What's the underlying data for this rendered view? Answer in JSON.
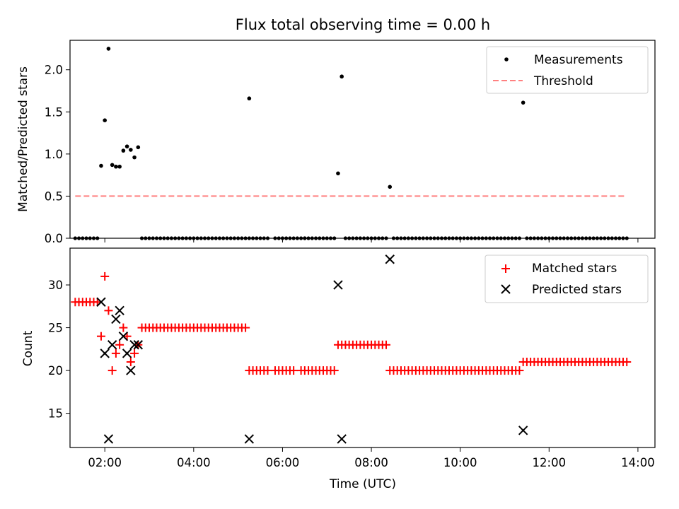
{
  "chart_data": [
    {
      "type": "scatter",
      "title": "Flux total observing time = 0.00 h",
      "ylabel": "Matched/Predicted stars",
      "xlim": [
        "01:13",
        "14:23"
      ],
      "ylim": [
        0,
        2.35
      ],
      "yticks": [
        "0.0",
        "0.5",
        "1.0",
        "1.5",
        "2.0"
      ],
      "xticks": [
        "02:00",
        "04:00",
        "06:00",
        "08:00",
        "10:00",
        "12:00",
        "14:00"
      ],
      "xtick_labels_shown": false,
      "legend": {
        "position": "top-right",
        "entries": [
          "Measurements",
          "Threshold"
        ]
      },
      "series": [
        {
          "name": "Measurements",
          "color": "#000000",
          "marker": "dot",
          "points": [
            {
              "x": "01:55",
              "y": 0.86
            },
            {
              "x": "02:00",
              "y": 1.4
            },
            {
              "x": "02:05",
              "y": 2.25
            },
            {
              "x": "02:10",
              "y": 0.87
            },
            {
              "x": "02:15",
              "y": 0.85
            },
            {
              "x": "02:20",
              "y": 0.85
            },
            {
              "x": "02:25",
              "y": 1.04
            },
            {
              "x": "02:30",
              "y": 1.09
            },
            {
              "x": "02:35",
              "y": 1.05
            },
            {
              "x": "02:40",
              "y": 0.96
            },
            {
              "x": "02:45",
              "y": 1.08
            },
            {
              "x": "05:15",
              "y": 1.66
            },
            {
              "x": "07:15",
              "y": 0.77
            },
            {
              "x": "07:20",
              "y": 1.92
            },
            {
              "x": "08:25",
              "y": 0.61
            },
            {
              "x": "11:25",
              "y": 1.61
            }
          ],
          "zero_value_runs": [
            [
              "01:20",
              "01:50"
            ],
            [
              "02:50",
              "05:10"
            ],
            [
              "05:15",
              "05:40"
            ],
            [
              "05:50",
              "06:10"
            ],
            [
              "06:15",
              "06:20"
            ],
            [
              "06:25",
              "06:30"
            ],
            [
              "06:30",
              "07:10"
            ],
            [
              "07:25",
              "08:20"
            ],
            [
              "08:30",
              "11:20"
            ],
            [
              "11:30",
              "13:45"
            ]
          ]
        },
        {
          "name": "Threshold",
          "color": "#ff8080",
          "style": "dashed",
          "x": [
            "01:20",
            "13:45"
          ],
          "y": [
            0.5,
            0.5
          ]
        }
      ]
    },
    {
      "type": "scatter",
      "title": "",
      "xlabel": "Time (UTC)",
      "ylabel": "Count",
      "xlim": [
        "01:13",
        "14:23"
      ],
      "ylim": [
        11,
        34.3
      ],
      "yticks": [
        "15",
        "20",
        "25",
        "30"
      ],
      "xticks": [
        "02:00",
        "04:00",
        "06:00",
        "08:00",
        "10:00",
        "12:00",
        "14:00"
      ],
      "legend": {
        "position": "top-right",
        "entries": [
          "Matched stars",
          "Predicted stars"
        ]
      },
      "series": [
        {
          "name": "Matched stars",
          "color": "#ff0000",
          "marker": "plus",
          "points": [
            {
              "x": "01:55",
              "y": 24
            },
            {
              "x": "02:00",
              "y": 31
            },
            {
              "x": "02:05",
              "y": 27
            },
            {
              "x": "02:10",
              "y": 20
            },
            {
              "x": "02:15",
              "y": 22
            },
            {
              "x": "02:20",
              "y": 23
            },
            {
              "x": "02:25",
              "y": 25
            },
            {
              "x": "02:30",
              "y": 24
            },
            {
              "x": "02:35",
              "y": 21
            },
            {
              "x": "02:40",
              "y": 22
            },
            {
              "x": "02:45",
              "y": 23
            }
          ],
          "runs": [
            {
              "from": "01:20",
              "to": "01:50",
              "y": 28
            },
            {
              "from": "02:50",
              "to": "05:10",
              "y": 25
            },
            {
              "from": "05:15",
              "to": "05:40",
              "y": 20
            },
            {
              "from": "05:50",
              "to": "06:10",
              "y": 20
            },
            {
              "from": "06:15",
              "to": "06:15",
              "y": 20
            },
            {
              "from": "06:25",
              "to": "06:25",
              "y": 20
            },
            {
              "from": "06:30",
              "to": "07:10",
              "y": 20
            },
            {
              "from": "07:15",
              "to": "08:20",
              "y": 23
            },
            {
              "from": "08:25",
              "to": "11:20",
              "y": 20
            },
            {
              "from": "11:25",
              "to": "13:45",
              "y": 21
            }
          ]
        },
        {
          "name": "Predicted stars",
          "color": "#000000",
          "marker": "x",
          "points": [
            {
              "x": "01:55",
              "y": 28
            },
            {
              "x": "02:00",
              "y": 22
            },
            {
              "x": "02:05",
              "y": 12
            },
            {
              "x": "02:10",
              "y": 23
            },
            {
              "x": "02:15",
              "y": 26
            },
            {
              "x": "02:20",
              "y": 27
            },
            {
              "x": "02:25",
              "y": 24
            },
            {
              "x": "02:30",
              "y": 22
            },
            {
              "x": "02:35",
              "y": 20
            },
            {
              "x": "02:40",
              "y": 23
            },
            {
              "x": "02:45",
              "y": 23
            },
            {
              "x": "05:15",
              "y": 12
            },
            {
              "x": "07:15",
              "y": 30
            },
            {
              "x": "07:20",
              "y": 12
            },
            {
              "x": "08:25",
              "y": 33
            },
            {
              "x": "11:25",
              "y": 13
            }
          ]
        }
      ]
    }
  ]
}
